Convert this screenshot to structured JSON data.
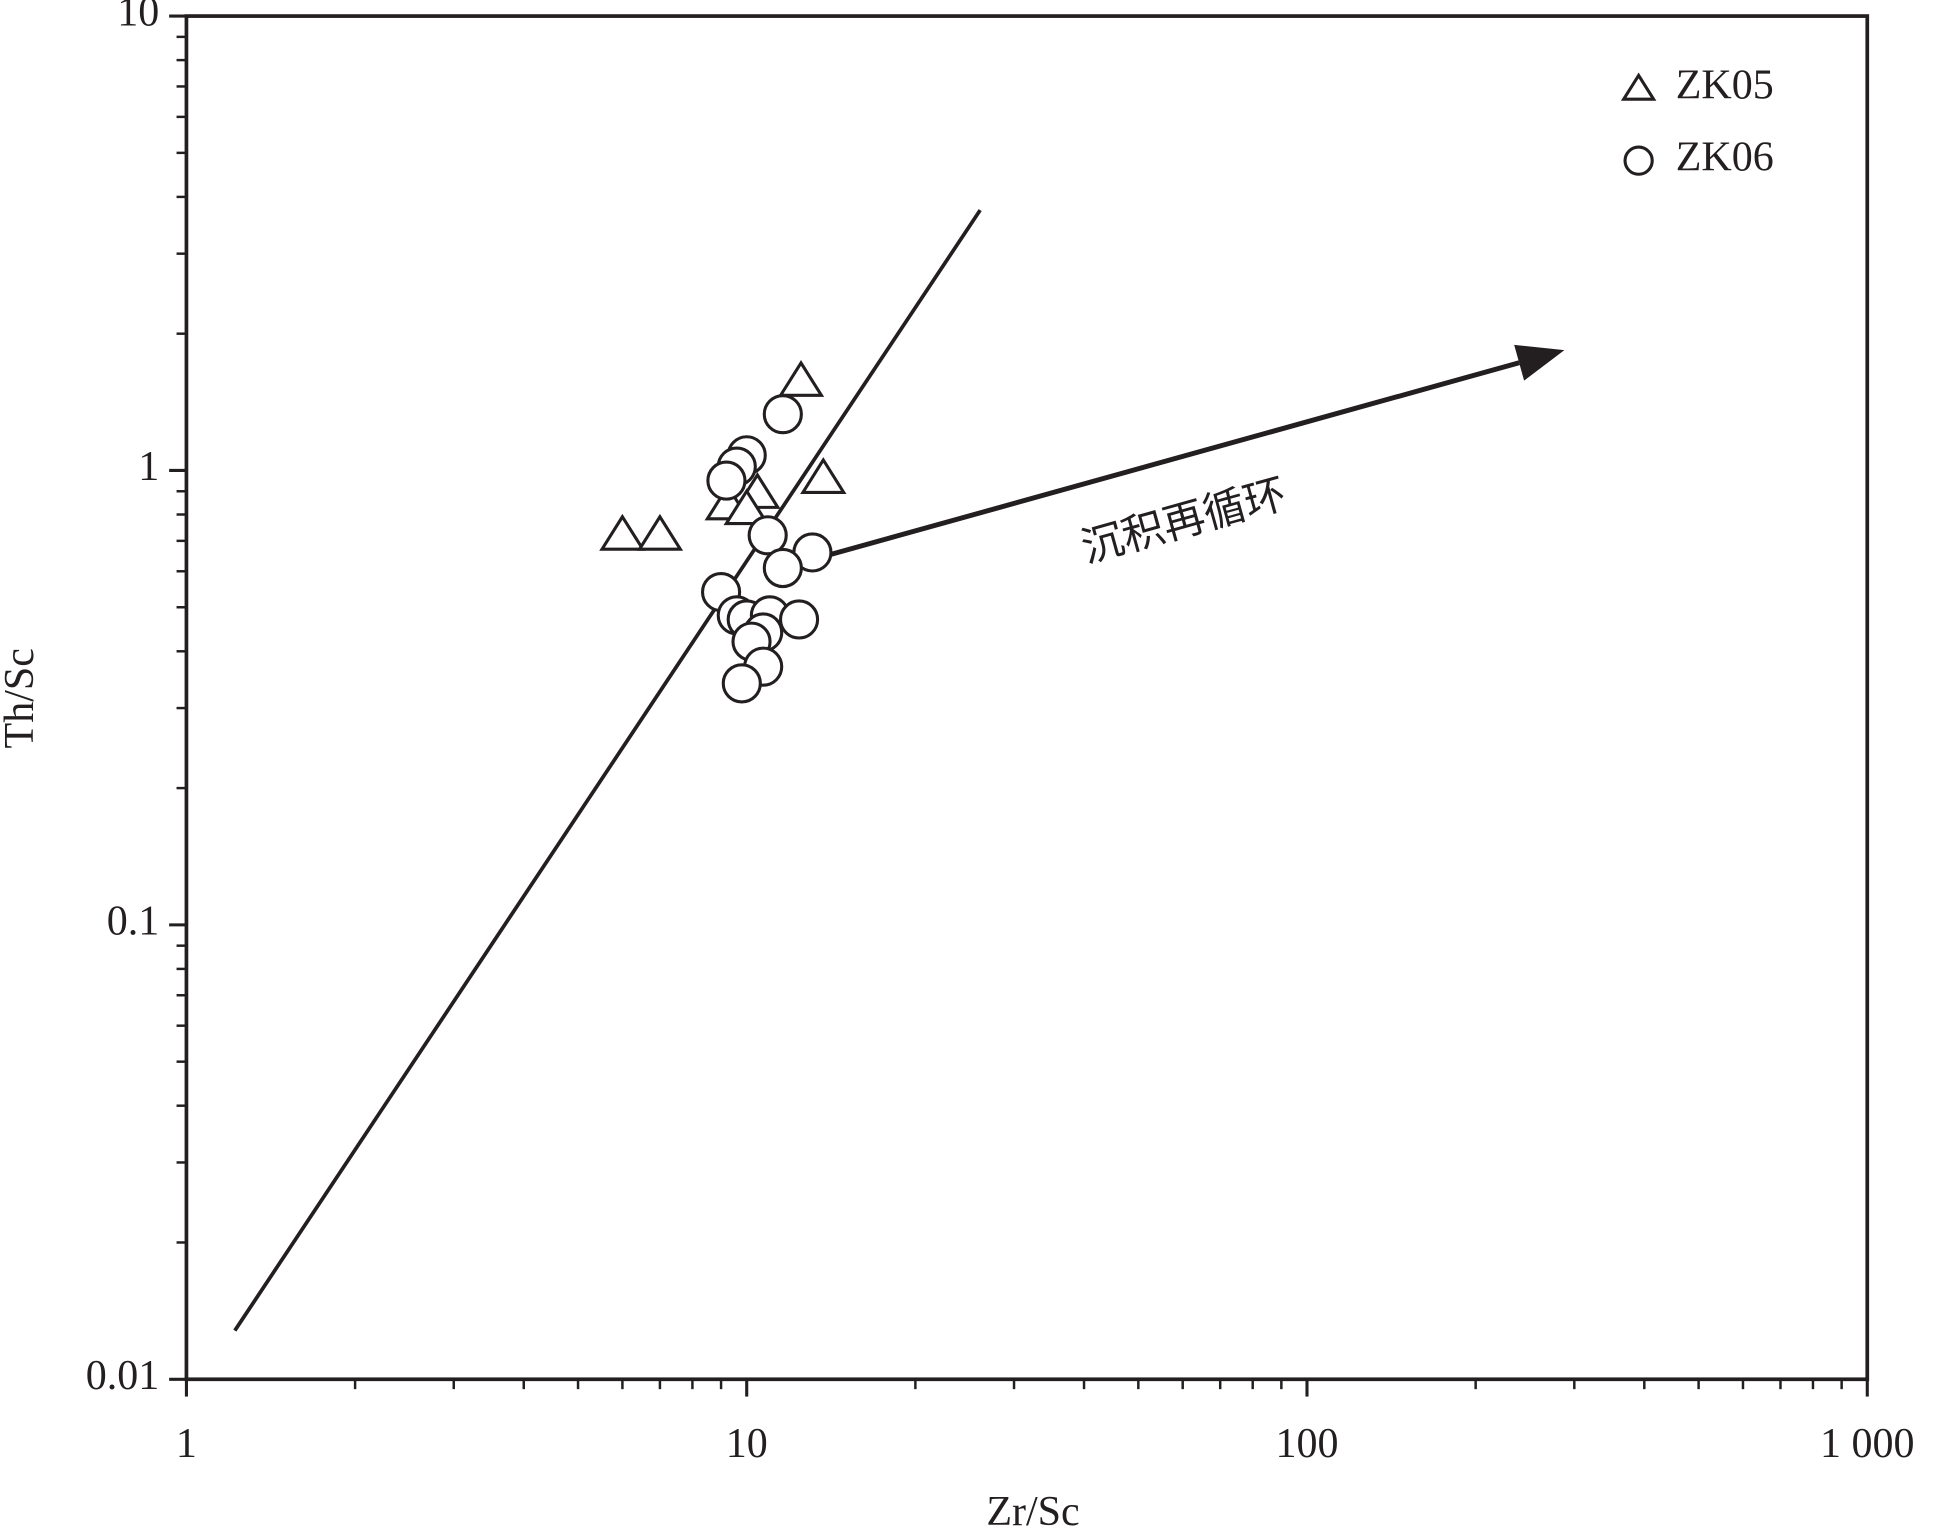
{
  "chart_data": {
    "type": "scatter",
    "x_label": "Zr/Sc",
    "y_label": "Th/Sc",
    "x_scale": "log",
    "y_scale": "log",
    "xlim": [
      1,
      1000
    ],
    "ylim": [
      0.01,
      10
    ],
    "xticks": [
      1,
      10,
      100,
      {
        "value": 1000,
        "label": "1 000"
      }
    ],
    "yticks": [
      0.01,
      0.1,
      1,
      10
    ],
    "minor_ticks": true,
    "legend": "top-right",
    "series": [
      {
        "name": "ZK05",
        "marker": "triangle",
        "color": "#231f20",
        "x": [
          6.0,
          7.0,
          9.25,
          10.45,
          10.0,
          12.5,
          13.7
        ],
        "values": [
          0.72,
          0.72,
          0.84,
          0.89,
          0.82,
          1.57,
          0.96
        ]
      },
      {
        "name": "ZK06",
        "marker": "circle",
        "color": "#231f20",
        "x": [
          11.6,
          10.0,
          9.6,
          9.2,
          10.9,
          13.1,
          11.6,
          9.0,
          9.6,
          10.0,
          11.0,
          12.4,
          10.7,
          10.2,
          10.7,
          9.8
        ],
        "values": [
          1.33,
          1.08,
          1.02,
          0.95,
          0.72,
          0.66,
          0.61,
          0.54,
          0.48,
          0.47,
          0.48,
          0.47,
          0.44,
          0.42,
          0.37,
          0.34
        ]
      }
    ],
    "reference_line": {
      "x": [
        1.22,
        26.1
      ],
      "values": [
        0.0128,
        3.74
      ]
    },
    "arrow": {
      "text": "沉积再循环",
      "x": [
        13.3,
        288
      ],
      "values": [
        0.64,
        1.84
      ]
    }
  }
}
